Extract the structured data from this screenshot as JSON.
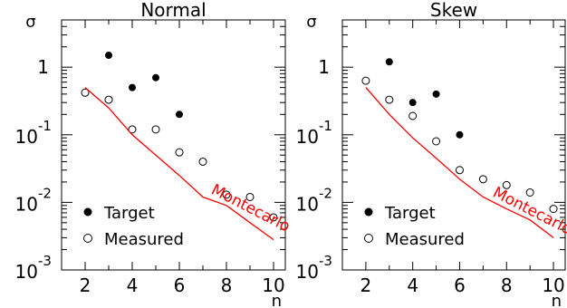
{
  "chart_data": [
    {
      "type": "scatter",
      "title": "Normal",
      "ylabel": "σ",
      "xlabel": "n",
      "yscale": "log",
      "xlim": [
        1,
        10.5
      ],
      "ylim": [
        0.001,
        5
      ],
      "x_ticks": [
        "2",
        "4",
        "6",
        "8",
        "10"
      ],
      "y_ticks": [
        {
          "value": 1,
          "base": "1",
          "exp": ""
        },
        {
          "value": 0.1,
          "base": "10",
          "exp": "-1"
        },
        {
          "value": 0.01,
          "base": "10",
          "exp": "-2"
        },
        {
          "value": 0.001,
          "base": "10",
          "exp": "-3"
        }
      ],
      "series": [
        {
          "name": "Target",
          "marker": "filled-circle",
          "x": [
            3,
            4,
            5,
            6
          ],
          "y": [
            1.5,
            0.5,
            0.7,
            0.2
          ]
        },
        {
          "name": "Measured",
          "marker": "open-circle",
          "x": [
            2,
            3,
            4,
            5,
            6,
            7,
            8,
            9,
            10
          ],
          "y": [
            0.42,
            0.33,
            0.12,
            0.12,
            0.055,
            0.04,
            0.013,
            0.012,
            0.006
          ]
        },
        {
          "name": "Montecarlo",
          "marker": "line",
          "color": "#ff0000",
          "x": [
            2,
            3,
            4,
            5,
            6,
            7,
            8,
            9,
            10
          ],
          "y": [
            0.5,
            0.25,
            0.1,
            0.05,
            0.025,
            0.012,
            0.009,
            0.005,
            0.0028
          ]
        }
      ],
      "legend": [
        "Target",
        "Measured"
      ],
      "annotation": "Montecarlo"
    },
    {
      "type": "scatter",
      "title": "Skew",
      "ylabel": "σ",
      "xlabel": "n",
      "yscale": "log",
      "xlim": [
        1,
        10.5
      ],
      "ylim": [
        0.001,
        5
      ],
      "x_ticks": [
        "2",
        "4",
        "6",
        "8",
        "10"
      ],
      "y_ticks": [
        {
          "value": 1,
          "base": "1",
          "exp": ""
        },
        {
          "value": 0.1,
          "base": "10",
          "exp": "-1"
        },
        {
          "value": 0.01,
          "base": "10",
          "exp": "-2"
        },
        {
          "value": 0.001,
          "base": "10",
          "exp": "-3"
        }
      ],
      "series": [
        {
          "name": "Target",
          "marker": "filled-circle",
          "x": [
            3,
            4,
            5,
            6
          ],
          "y": [
            1.2,
            0.3,
            0.4,
            0.1
          ]
        },
        {
          "name": "Measured",
          "marker": "open-circle",
          "x": [
            2,
            3,
            4,
            5,
            6,
            7,
            8,
            9,
            10
          ],
          "y": [
            0.63,
            0.33,
            0.19,
            0.08,
            0.03,
            0.022,
            0.018,
            0.014,
            0.008
          ]
        },
        {
          "name": "Montecarlo",
          "marker": "line",
          "color": "#ff0000",
          "x": [
            2,
            3,
            4,
            5,
            6,
            7,
            8,
            9,
            10
          ],
          "y": [
            0.5,
            0.2,
            0.09,
            0.045,
            0.022,
            0.012,
            0.008,
            0.0055,
            0.003
          ]
        }
      ],
      "legend": [
        "Target",
        "Measured"
      ],
      "annotation": "Montecarlo"
    }
  ]
}
